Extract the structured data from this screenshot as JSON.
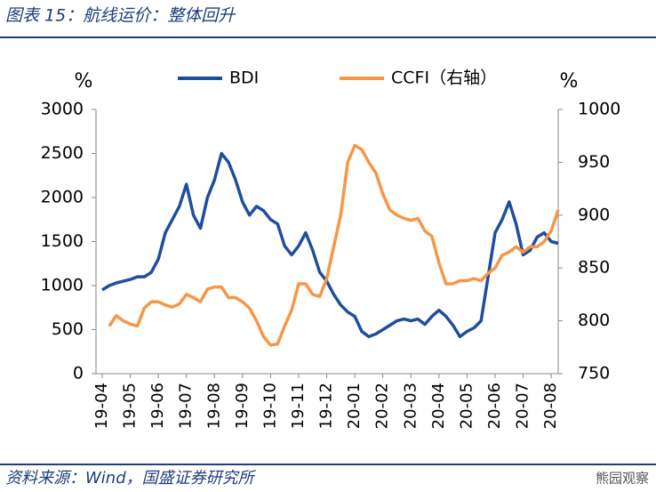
{
  "chart_data": {
    "type": "line",
    "title": "图表 15：航线运价：整体回升",
    "source": "资料来源：Wind，国盛证券研究所",
    "watermark": "熊园观察",
    "y_unit": "%",
    "y2_unit": "%",
    "legend": "top",
    "categories": [
      "19-04",
      null,
      null,
      null,
      "19-05",
      null,
      null,
      null,
      "19-06",
      null,
      null,
      null,
      "19-07",
      null,
      null,
      null,
      "19-08",
      null,
      null,
      null,
      "19-09",
      null,
      null,
      null,
      "19-10",
      null,
      null,
      null,
      "19-11",
      null,
      null,
      null,
      "19-12",
      null,
      null,
      null,
      "20-01",
      null,
      null,
      null,
      "20-02",
      null,
      null,
      null,
      "20-03",
      null,
      null,
      null,
      "20-04",
      null,
      null,
      null,
      "20-05",
      null,
      null,
      null,
      "20-06",
      null,
      null,
      null,
      "20-07",
      null,
      null,
      null,
      "20-08",
      null
    ],
    "ylim": [
      0,
      3000
    ],
    "yticks": [
      0,
      500,
      1000,
      1500,
      2000,
      2500,
      3000
    ],
    "y2lim": [
      750,
      1000
    ],
    "y2ticks": [
      750,
      800,
      850,
      900,
      950,
      1000
    ],
    "series": [
      {
        "name": "BDI",
        "color": "#1f4e9e",
        "values": [
          950,
          1000,
          1030,
          1050,
          1070,
          1100,
          1100,
          1150,
          1300,
          1600,
          1750,
          1900,
          2150,
          1800,
          1650,
          2000,
          2200,
          2500,
          2400,
          2200,
          1950,
          1800,
          1900,
          1850,
          1750,
          1700,
          1450,
          1350,
          1450,
          1600,
          1400,
          1150,
          1050,
          900,
          780,
          700,
          650,
          480,
          420,
          450,
          500,
          550,
          600,
          620,
          600,
          620,
          560,
          650,
          720,
          650,
          550,
          420,
          480,
          520,
          600,
          1100,
          1600,
          1750,
          1950,
          1700,
          1350,
          1400,
          1550,
          1600,
          1500,
          1480
        ]
      },
      {
        "name": "CCFI（右轴）",
        "color": "#f79646",
        "axis": "y2",
        "values": [
          null,
          795,
          805,
          800,
          797,
          795,
          812,
          818,
          818,
          815,
          813,
          816,
          825,
          822,
          818,
          830,
          832,
          832,
          822,
          822,
          818,
          812,
          800,
          785,
          777,
          778,
          795,
          810,
          835,
          835,
          825,
          823,
          840,
          870,
          900,
          950,
          966,
          962,
          950,
          940,
          920,
          905,
          900,
          897,
          895,
          897,
          885,
          880,
          855,
          835,
          835,
          838,
          838,
          840,
          838,
          845,
          850,
          862,
          865,
          870,
          865,
          870,
          870,
          875,
          885,
          905
        ]
      }
    ]
  }
}
